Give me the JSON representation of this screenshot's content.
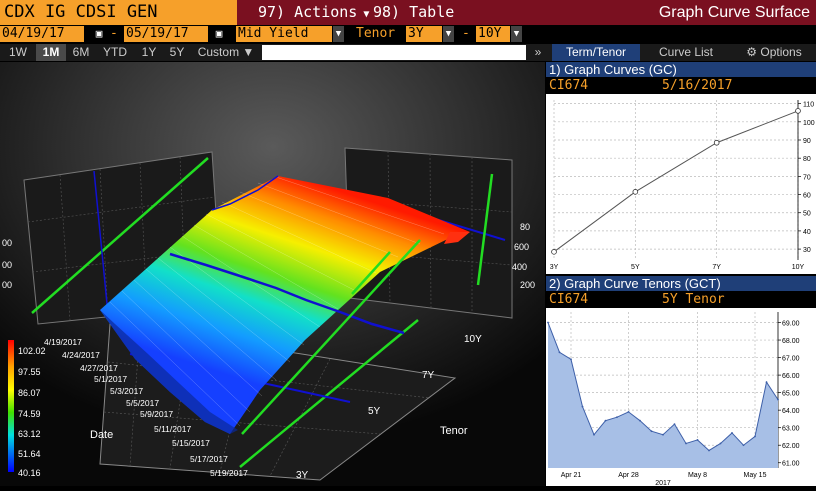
{
  "header": {
    "ticker": "CDX IG CDSI GEN",
    "actions_label": "97) Actions",
    "table_label": "98) Table",
    "title": "Graph Curve Surface"
  },
  "controls": {
    "start_date": "04/19/17",
    "dash": "-",
    "end_date": "05/19/17",
    "field": "Mid Yield",
    "tenor_label": "Tenor",
    "tenor_from": "3Y",
    "tenor_dash": "-",
    "tenor_to": "10Y"
  },
  "range_tabs": [
    "1W",
    "1M",
    "6M",
    "YTD",
    "1Y",
    "5Y",
    "Custom ▼"
  ],
  "range_active": "1M",
  "right_tabs": {
    "expand": "»",
    "items": [
      "Term/Tenor",
      "Curve List",
      "⚙ Options"
    ],
    "active": "Term/Tenor"
  },
  "surface": {
    "z_ticks": [
      "102.02",
      "97.55",
      "86.07",
      "74.59",
      "63.12",
      "51.64",
      "40.16"
    ],
    "date_label": "Date",
    "tenor_label": "Tenor",
    "dates": [
      "4/19/2017",
      "4/24/2017",
      "4/27/2017",
      "5/1/2017",
      "5/3/2017",
      "5/5/2017",
      "5/9/2017",
      "5/11/2017",
      "5/15/2017",
      "5/17/2017",
      "5/19/2017"
    ],
    "tenors": [
      "3Y",
      "5Y",
      "7Y",
      "10Y"
    ],
    "side_ticks_right": [
      "80",
      "600",
      "400",
      "200"
    ],
    "side_ticks_left": [
      "00",
      "00",
      "00"
    ],
    "colors": {
      "surface_high": "#ff2a00",
      "surface_low": "#1a6dff",
      "highlight": "#22dd22",
      "marker": "#1010d0"
    }
  },
  "panel_gc": {
    "title": "1) Graph Curves (GC)",
    "id": "CI674",
    "date": "5/16/2017",
    "chart_data": {
      "type": "line",
      "x": [
        "3Y",
        "5Y",
        "7Y",
        "10Y"
      ],
      "values": [
        28.5,
        61.5,
        88.5,
        106
      ],
      "y_ticks": [
        30,
        40,
        50,
        60,
        70,
        80,
        90,
        100,
        110
      ],
      "ylim": [
        24,
        112
      ],
      "grid": true
    }
  },
  "panel_gct": {
    "title": "2) Graph Curve Tenors (GCT)",
    "id": "CI674",
    "tenor": "5Y Tenor",
    "chart_data": {
      "type": "area",
      "x": [
        "4/19",
        "4/20",
        "4/21",
        "4/24",
        "4/25",
        "4/26",
        "4/27",
        "4/28",
        "5/1",
        "5/2",
        "5/3",
        "5/4",
        "5/5",
        "5/8",
        "5/9",
        "5/10",
        "5/11",
        "5/12",
        "5/15",
        "5/16",
        "5/17"
      ],
      "values": [
        69.0,
        67.3,
        66.9,
        64.2,
        62.6,
        63.4,
        63.6,
        63.9,
        63.4,
        62.8,
        62.6,
        63.2,
        62.1,
        62.3,
        61.7,
        62.1,
        62.7,
        62.0,
        62.5,
        65.6,
        64.6
      ],
      "x_labels": [
        "Apr 21",
        "Apr 28",
        "May 8",
        "May 15"
      ],
      "x_sublabel": "2017",
      "y_ticks": [
        "69.00",
        "68.00",
        "67.00",
        "66.00",
        "65.00",
        "64.00",
        "63.00",
        "62.00",
        "61.00"
      ],
      "ylim": [
        60.7,
        69.6
      ],
      "grid": true
    }
  }
}
